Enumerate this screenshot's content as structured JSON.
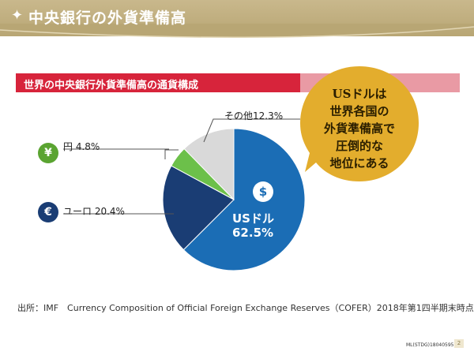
{
  "header": {
    "title": "中央銀行の外貨準備高",
    "star": "✦"
  },
  "subtitle": "世界の中央銀行外貨準備高の通貨構成",
  "bubble_text": "USドルは\n世界各国の\n外貨準備高で\n圧倒的な\n地位にある",
  "colors": {
    "usd": "#1b6db5",
    "euro": "#1a3d74",
    "yen": "#6cc04a",
    "other": "#d9d9d9",
    "accent": "#d7243b",
    "bubble": "#e3ad2d"
  },
  "icons": {
    "dollar": "$",
    "yen": "¥",
    "euro": "€"
  },
  "chart_data": {
    "type": "pie",
    "slices": [
      {
        "label": "USドル",
        "value": 62.5,
        "display": "USドル\n62.5%"
      },
      {
        "label": "ユーロ",
        "value": 20.4,
        "display": "ユーロ 20.4%"
      },
      {
        "label": "円",
        "value": 4.8,
        "display": "円 4.8%"
      },
      {
        "label": "その他",
        "value": 12.3,
        "display": "その他12.3%"
      }
    ]
  },
  "labels": {
    "usd_name": "USドル",
    "usd_value": "62.5%",
    "euro": "ユーロ 20.4%",
    "yen": "円 4.8%",
    "other": "その他12.3%"
  },
  "source": "出所：IMF　Currency Composition of Official Foreign Exchange Reserves（COFER）2018年第1四半期末時点",
  "footer_code": "ML(STDG)18040595",
  "page_number": "2"
}
